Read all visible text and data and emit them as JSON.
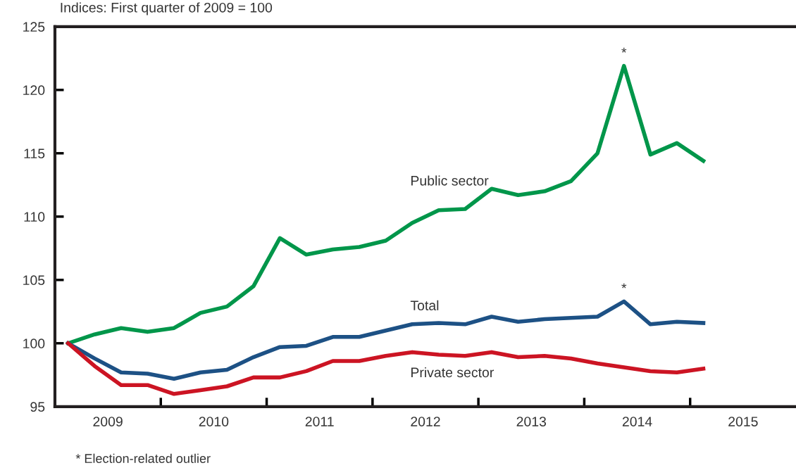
{
  "chart_data": {
    "type": "line",
    "subtitle": "Indices: First quarter of 2009 = 100",
    "x": [
      2009.125,
      2009.375,
      2009.625,
      2009.875,
      2010.125,
      2010.375,
      2010.625,
      2010.875,
      2011.125,
      2011.375,
      2011.625,
      2011.875,
      2012.125,
      2012.375,
      2012.625,
      2012.875,
      2013.125,
      2013.375,
      2013.625,
      2013.875,
      2014.125,
      2014.375,
      2014.625,
      2014.875,
      2015.125
    ],
    "series": [
      {
        "name": "Public sector",
        "color": "#00964a",
        "values": [
          100,
          100.7,
          101.2,
          100.9,
          101.2,
          102.4,
          102.9,
          104.5,
          108.3,
          107.0,
          107.4,
          107.6,
          108.1,
          109.5,
          110.5,
          110.6,
          112.2,
          111.7,
          112.0,
          112.8,
          115.0,
          121.9,
          114.9,
          115.8,
          114.4
        ]
      },
      {
        "name": "Total",
        "color": "#1d5185",
        "values": [
          100,
          98.8,
          97.7,
          97.6,
          97.2,
          97.7,
          97.9,
          98.9,
          99.7,
          99.8,
          100.5,
          100.5,
          101.0,
          101.5,
          101.6,
          101.5,
          102.1,
          101.7,
          101.9,
          102.0,
          102.1,
          103.3,
          101.5,
          101.7,
          101.6
        ]
      },
      {
        "name": "Private sector",
        "color": "#cc1423",
        "values": [
          100,
          98.2,
          96.7,
          96.7,
          96.0,
          96.3,
          96.6,
          97.3,
          97.3,
          97.8,
          98.6,
          98.6,
          99.0,
          99.3,
          99.1,
          99.0,
          99.3,
          98.9,
          99.0,
          98.8,
          98.4,
          98.1,
          97.8,
          97.7,
          98.0
        ]
      }
    ],
    "xlim": [
      2009,
      2016
    ],
    "xticks": [
      {
        "value": 2009.5,
        "label": "2009"
      },
      {
        "value": 2010,
        "label": null
      },
      {
        "value": 2010.5,
        "label": "2010"
      },
      {
        "value": 2011,
        "label": null
      },
      {
        "value": 2011.5,
        "label": "2011"
      },
      {
        "value": 2012,
        "label": null
      },
      {
        "value": 2012.5,
        "label": "2012"
      },
      {
        "value": 2013,
        "label": null
      },
      {
        "value": 2013.5,
        "label": "2013"
      },
      {
        "value": 2014,
        "label": null
      },
      {
        "value": 2014.5,
        "label": "2014"
      },
      {
        "value": 2015,
        "label": null
      },
      {
        "value": 2015.5,
        "label": "2015"
      }
    ],
    "ylim": [
      95,
      125
    ],
    "yticks": [
      95,
      100,
      105,
      110,
      115,
      120,
      125
    ],
    "annotations": [
      {
        "text": "*",
        "x": 2014.375,
        "y": 121.9
      },
      {
        "text": "*",
        "x": 2014.375,
        "y": 103.3
      },
      "* Election-related outlier"
    ],
    "grid": false,
    "legend": false,
    "marker": "none",
    "line_style": "solid"
  }
}
